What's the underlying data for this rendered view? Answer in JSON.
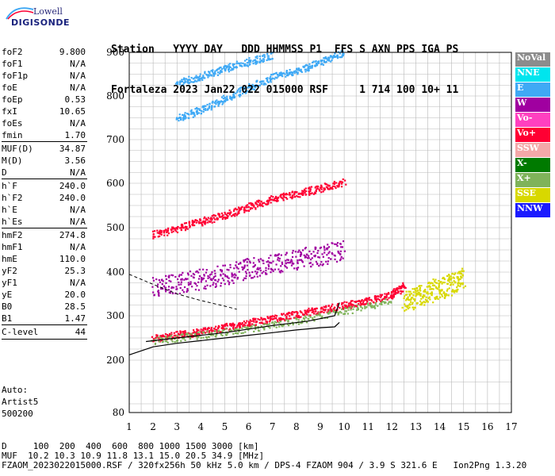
{
  "logo": {
    "line1": "Lowell",
    "line2": "DIGISONDE"
  },
  "header": {
    "line1": "Station   YYYY DAY   DDD HHMMSS P1  FFS S AXN PPS IGA PS",
    "line2": "Fortaleza 2023 Jan22 022 015000 RSF     1 714 100 10+ 11"
  },
  "params": [
    {
      "k": "foF2",
      "v": "9.800"
    },
    {
      "k": "foF1",
      "v": "N/A"
    },
    {
      "k": "foF1p",
      "v": "N/A"
    },
    {
      "k": "foE",
      "v": "N/A"
    },
    {
      "k": "foEp",
      "v": "0.53"
    },
    {
      "k": "fxI",
      "v": "10.65"
    },
    {
      "k": "foEs",
      "v": "N/A"
    },
    {
      "k": "fmin",
      "v": "1.70"
    },
    {
      "k": "MUF(D)",
      "v": "34.87"
    },
    {
      "k": "M(D)",
      "v": "3.56"
    },
    {
      "k": "D",
      "v": "N/A"
    },
    {
      "k": "h`F",
      "v": "240.0"
    },
    {
      "k": "h`F2",
      "v": "240.0"
    },
    {
      "k": "h`E",
      "v": "N/A"
    },
    {
      "k": "h`Es",
      "v": "N/A"
    },
    {
      "k": "hmF2",
      "v": "274.8"
    },
    {
      "k": "hmF1",
      "v": "N/A"
    },
    {
      "k": "hmE",
      "v": "110.0"
    },
    {
      "k": "yF2",
      "v": "25.3"
    },
    {
      "k": "yF1",
      "v": "N/A"
    },
    {
      "k": "yE",
      "v": "20.0"
    },
    {
      "k": "B0",
      "v": "28.5"
    },
    {
      "k": "B1",
      "v": "1.47"
    },
    {
      "k": "C-level",
      "v": "44"
    }
  ],
  "auto": {
    "line1": "Auto:",
    "line2": "Artist5",
    "line3": "500200"
  },
  "legend": [
    {
      "label": "NoVal",
      "color": "#8c8c8c"
    },
    {
      "label": "NNE",
      "color": "#00e5ee"
    },
    {
      "label": "E",
      "color": "#3fa9f5"
    },
    {
      "label": "W",
      "color": "#a000a0"
    },
    {
      "label": "Vo-",
      "color": "#ff40c0"
    },
    {
      "label": "Vo+",
      "color": "#ff0033"
    },
    {
      "label": "SSW",
      "color": "#f4a8a8"
    },
    {
      "label": "X-",
      "color": "#007a00"
    },
    {
      "label": "X+",
      "color": "#7fb35a"
    },
    {
      "label": "SSE",
      "color": "#d8d800"
    },
    {
      "label": "NNW",
      "color": "#1a1aff"
    }
  ],
  "footer": {
    "line1": "D     100  200  400  600  800 1000 1500 3000 [km]",
    "line2": "MUF  10.2 10.3 10.9 11.8 13.1 15.0 20.5 34.9 [MHz]",
    "line3": "FZAOM_2023022015000.RSF / 320fx256h 50 kHz 5.0 km / DPS-4 FZAOM 904 / 3.9 S 321.6 E   Ion2Png 1.3.20"
  },
  "chart_data": {
    "type": "scatter",
    "xlim": [
      1,
      17
    ],
    "ylim": [
      80,
      900
    ],
    "x_ticks": [
      1,
      2,
      3,
      4,
      5,
      6,
      7,
      8,
      9,
      10,
      11,
      12,
      13,
      14,
      15,
      16,
      17
    ],
    "y_ticks": [
      80,
      200,
      300,
      400,
      500,
      600,
      700,
      800,
      900
    ],
    "grid": true,
    "series": [
      {
        "name": "Vo+",
        "type": "trace",
        "color": "#ff0033",
        "points": [
          [
            2.0,
            250
          ],
          [
            3.0,
            258
          ],
          [
            4.0,
            265
          ],
          [
            5.0,
            275
          ],
          [
            6.0,
            285
          ],
          [
            7.0,
            295
          ],
          [
            8.0,
            305
          ],
          [
            9.0,
            315
          ],
          [
            10.0,
            325
          ],
          [
            11.0,
            335
          ],
          [
            12.0,
            350
          ],
          [
            12.5,
            370
          ]
        ]
      },
      {
        "name": "Vo+",
        "type": "trace",
        "color": "#ff0033",
        "points": [
          [
            2.0,
            485
          ],
          [
            3.0,
            500
          ],
          [
            4.0,
            515
          ],
          [
            5.0,
            530
          ],
          [
            6.0,
            548
          ],
          [
            7.0,
            565
          ],
          [
            8.0,
            578
          ],
          [
            9.0,
            590
          ],
          [
            10.0,
            605
          ]
        ]
      },
      {
        "name": "E",
        "type": "trace",
        "color": "#3fa9f5",
        "points": [
          [
            3.0,
            750
          ],
          [
            4.0,
            770
          ],
          [
            5.0,
            795
          ],
          [
            6.0,
            820
          ],
          [
            7.0,
            845
          ],
          [
            8.0,
            860
          ],
          [
            9.0,
            880
          ],
          [
            10.0,
            900
          ]
        ]
      },
      {
        "name": "E",
        "type": "trace",
        "color": "#3fa9f5",
        "points": [
          [
            3.0,
            830
          ],
          [
            4.0,
            845
          ],
          [
            5.0,
            865
          ],
          [
            6.0,
            880
          ],
          [
            7.0,
            895
          ]
        ]
      },
      {
        "name": "W",
        "type": "trace",
        "color": "#a000a0",
        "points": [
          [
            2.0,
            365
          ],
          [
            3.0,
            375
          ],
          [
            4.0,
            385
          ],
          [
            5.0,
            395
          ],
          [
            6.0,
            410
          ],
          [
            7.0,
            420
          ],
          [
            8.0,
            430
          ],
          [
            9.0,
            440
          ],
          [
            10.0,
            450
          ]
        ]
      },
      {
        "name": "SSE",
        "type": "trace",
        "color": "#d8d800",
        "points": [
          [
            12.5,
            330
          ],
          [
            13.0,
            345
          ],
          [
            13.5,
            355
          ],
          [
            14.0,
            365
          ],
          [
            14.5,
            375
          ],
          [
            15.0,
            385
          ]
        ]
      },
      {
        "name": "X+",
        "type": "trace",
        "color": "#7fb35a",
        "points": [
          [
            2.0,
            245
          ],
          [
            4.0,
            258
          ],
          [
            6.0,
            272
          ],
          [
            8.0,
            290
          ],
          [
            10.0,
            312
          ],
          [
            12.0,
            335
          ]
        ]
      }
    ],
    "profile_curve": [
      [
        1.0,
        212
      ],
      [
        2.0,
        230
      ],
      [
        3.0,
        238
      ],
      [
        4.0,
        244
      ],
      [
        5.0,
        250
      ],
      [
        6.0,
        256
      ],
      [
        7.0,
        262
      ],
      [
        8.0,
        268
      ],
      [
        9.0,
        273
      ],
      [
        9.6,
        275
      ],
      [
        9.8,
        285
      ]
    ],
    "o_trace_fit": [
      [
        1.7,
        242
      ],
      [
        3.0,
        250
      ],
      [
        5.0,
        262
      ],
      [
        7.0,
        278
      ],
      [
        8.5,
        288
      ],
      [
        9.6,
        300
      ],
      [
        9.8,
        330
      ]
    ],
    "dashed_trace": [
      [
        1.0,
        395
      ],
      [
        2.0,
        372
      ],
      [
        3.0,
        350
      ],
      [
        4.0,
        335
      ],
      [
        5.0,
        322
      ],
      [
        5.5,
        315
      ]
    ]
  }
}
